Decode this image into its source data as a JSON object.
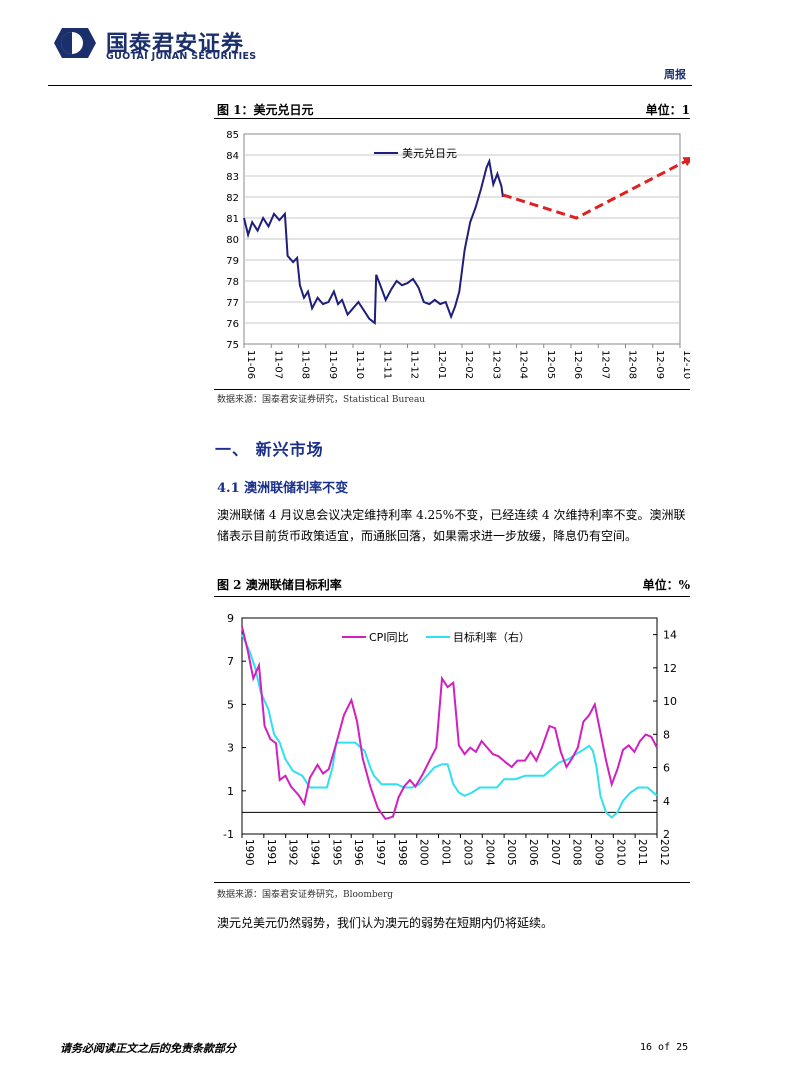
{
  "header": {
    "company_cn": "国泰君安证券",
    "company_en": "GUOTAI JUNAN SECURITIES",
    "doc_type": "周报"
  },
  "figure1": {
    "title": "图 1：美元兑日元",
    "unit": "单位：1",
    "source": "数据来源：国泰君安证券研究，Statistical Bureau"
  },
  "section": {
    "heading": "一、 新兴市场",
    "sub_heading": "4.1 澳洲联储利率不变",
    "paragraph": "澳洲联储 4 月议息会议决定维持利率 4.25%不变，已经连续 4 次维持利率不变。澳洲联储表示目前货币政策适宜，而通胀回落，如果需求进一步放缓，降息仍有空间。"
  },
  "figure2": {
    "title": "图 2 澳洲联储目标利率",
    "unit": "单位：%",
    "source": "数据来源：国泰君安证券研究，Bloomberg"
  },
  "closing_text": "澳元兑美元仍然弱势，我们认为澳元的弱势在短期内仍将延续。",
  "footer": {
    "disclaimer": "请务必阅读正文之后的免责条款部分",
    "page": "16 of 25"
  },
  "colors": {
    "brand": "#1a2f6b",
    "series_usd_jpy": "#1f1f7a",
    "forecast": "#e02020",
    "cpi": "#d020c0",
    "target_rate": "#30e0f0"
  },
  "chart_data": [
    {
      "type": "line",
      "title": "",
      "xlabel": "",
      "ylabel": "",
      "ylim": [
        75,
        85
      ],
      "yticks": [
        75,
        76,
        77,
        78,
        79,
        80,
        81,
        82,
        83,
        84,
        85
      ],
      "xticks": [
        "11-06",
        "11-07",
        "11-08",
        "11-09",
        "11-10",
        "11-11",
        "11-12",
        "12-01",
        "12-02",
        "12-03",
        "12-04",
        "12-05",
        "12-06",
        "12-07",
        "12-08",
        "12-09",
        "12-10"
      ],
      "grid": true,
      "legend_position": "top-center",
      "series": [
        {
          "name": "美元兑日元",
          "points": [
            [
              0.0,
              81.0
            ],
            [
              0.15,
              80.2
            ],
            [
              0.3,
              80.8
            ],
            [
              0.5,
              80.4
            ],
            [
              0.7,
              81.0
            ],
            [
              0.9,
              80.6
            ],
            [
              1.1,
              81.2
            ],
            [
              1.3,
              80.9
            ],
            [
              1.5,
              81.2
            ],
            [
              1.6,
              79.2
            ],
            [
              1.8,
              78.9
            ],
            [
              1.95,
              79.1
            ],
            [
              2.05,
              77.8
            ],
            [
              2.2,
              77.2
            ],
            [
              2.35,
              77.5
            ],
            [
              2.5,
              76.7
            ],
            [
              2.7,
              77.2
            ],
            [
              2.9,
              76.9
            ],
            [
              3.1,
              77.0
            ],
            [
              3.3,
              77.5
            ],
            [
              3.45,
              76.9
            ],
            [
              3.6,
              77.1
            ],
            [
              3.8,
              76.4
            ],
            [
              4.0,
              76.7
            ],
            [
              4.2,
              77.0
            ],
            [
              4.4,
              76.6
            ],
            [
              4.6,
              76.2
            ],
            [
              4.8,
              76.0
            ],
            [
              4.85,
              78.3
            ],
            [
              5.0,
              77.8
            ],
            [
              5.2,
              77.1
            ],
            [
              5.4,
              77.6
            ],
            [
              5.6,
              78.0
            ],
            [
              5.8,
              77.8
            ],
            [
              6.0,
              77.9
            ],
            [
              6.2,
              78.1
            ],
            [
              6.4,
              77.7
            ],
            [
              6.6,
              77.0
            ],
            [
              6.8,
              76.9
            ],
            [
              7.0,
              77.1
            ],
            [
              7.2,
              76.9
            ],
            [
              7.4,
              77.0
            ],
            [
              7.6,
              76.3
            ],
            [
              7.75,
              76.8
            ],
            [
              7.9,
              77.5
            ],
            [
              8.1,
              79.5
            ],
            [
              8.3,
              80.8
            ],
            [
              8.5,
              81.5
            ],
            [
              8.7,
              82.4
            ],
            [
              8.9,
              83.4
            ],
            [
              9.0,
              83.7
            ],
            [
              9.15,
              82.6
            ],
            [
              9.3,
              83.1
            ],
            [
              9.45,
              82.5
            ],
            [
              9.5,
              82.0
            ]
          ]
        },
        {
          "name": "",
          "style": "dashed-arrow",
          "points": [
            [
              9.5,
              82.1
            ],
            [
              12.2,
              81.0
            ],
            [
              16.5,
              83.9
            ]
          ]
        }
      ]
    },
    {
      "type": "line",
      "title": "",
      "xlabel": "",
      "ylabel": "",
      "ylim": [
        -1,
        9
      ],
      "yticks": [
        -1,
        1,
        3,
        5,
        7,
        9
      ],
      "y2lim": [
        2,
        15
      ],
      "y2ticks": [
        2,
        4,
        6,
        8,
        10,
        12,
        14
      ],
      "xticks": [
        "1990",
        "1991",
        "1992",
        "1994",
        "1995",
        "1996",
        "1997",
        "1998",
        "2000",
        "2001",
        "2003",
        "2004",
        "2005",
        "2006",
        "2007",
        "2008",
        "2009",
        "2010",
        "2011",
        "2012"
      ],
      "grid": false,
      "legend_position": "top-center",
      "series": [
        {
          "name": "CPI同比",
          "axis": "left",
          "points": [
            [
              1990.0,
              8.6
            ],
            [
              1990.3,
              7.5
            ],
            [
              1990.6,
              6.2
            ],
            [
              1990.9,
              6.8
            ],
            [
              1991.2,
              4.0
            ],
            [
              1991.5,
              3.4
            ],
            [
              1991.8,
              3.2
            ],
            [
              1992.0,
              1.5
            ],
            [
              1992.3,
              1.7
            ],
            [
              1992.6,
              1.2
            ],
            [
              1993.0,
              0.8
            ],
            [
              1993.3,
              0.4
            ],
            [
              1993.6,
              1.6
            ],
            [
              1994.0,
              2.2
            ],
            [
              1994.3,
              1.8
            ],
            [
              1994.6,
              2.0
            ],
            [
              1995.0,
              3.2
            ],
            [
              1995.4,
              4.5
            ],
            [
              1995.8,
              5.2
            ],
            [
              1996.1,
              4.2
            ],
            [
              1996.4,
              2.5
            ],
            [
              1996.8,
              1.2
            ],
            [
              1997.2,
              0.2
            ],
            [
              1997.6,
              -0.3
            ],
            [
              1998.0,
              -0.2
            ],
            [
              1998.3,
              0.7
            ],
            [
              1998.6,
              1.2
            ],
            [
              1998.9,
              1.5
            ],
            [
              1999.2,
              1.2
            ],
            [
              1999.6,
              1.8
            ],
            [
              2000.0,
              2.5
            ],
            [
              2000.3,
              3.0
            ],
            [
              2000.6,
              6.2
            ],
            [
              2000.9,
              5.8
            ],
            [
              2001.2,
              6.0
            ],
            [
              2001.5,
              3.1
            ],
            [
              2001.8,
              2.7
            ],
            [
              2002.1,
              3.0
            ],
            [
              2002.4,
              2.8
            ],
            [
              2002.7,
              3.3
            ],
            [
              2003.0,
              3.0
            ],
            [
              2003.3,
              2.7
            ],
            [
              2003.6,
              2.6
            ],
            [
              2004.0,
              2.3
            ],
            [
              2004.3,
              2.1
            ],
            [
              2004.6,
              2.4
            ],
            [
              2005.0,
              2.4
            ],
            [
              2005.3,
              2.8
            ],
            [
              2005.6,
              2.4
            ],
            [
              2005.9,
              3.0
            ],
            [
              2006.3,
              4.0
            ],
            [
              2006.6,
              3.9
            ],
            [
              2006.9,
              2.8
            ],
            [
              2007.2,
              2.1
            ],
            [
              2007.5,
              2.5
            ],
            [
              2007.8,
              3.0
            ],
            [
              2008.1,
              4.2
            ],
            [
              2008.4,
              4.5
            ],
            [
              2008.7,
              5.0
            ],
            [
              2009.0,
              3.7
            ],
            [
              2009.3,
              2.4
            ],
            [
              2009.6,
              1.3
            ],
            [
              2009.9,
              2.0
            ],
            [
              2010.2,
              2.9
            ],
            [
              2010.5,
              3.1
            ],
            [
              2010.8,
              2.8
            ],
            [
              2011.1,
              3.3
            ],
            [
              2011.4,
              3.6
            ],
            [
              2011.7,
              3.5
            ],
            [
              2012.0,
              3.0
            ]
          ]
        },
        {
          "name": "目标利率（右）",
          "axis": "right",
          "points": [
            [
              1990.0,
              14.0
            ],
            [
              1990.4,
              13.0
            ],
            [
              1990.7,
              12.0
            ],
            [
              1991.0,
              10.5
            ],
            [
              1991.4,
              9.5
            ],
            [
              1991.7,
              8.0
            ],
            [
              1992.0,
              7.5
            ],
            [
              1992.3,
              6.5
            ],
            [
              1992.7,
              5.8
            ],
            [
              1993.2,
              5.5
            ],
            [
              1993.6,
              4.8
            ],
            [
              1994.0,
              4.8
            ],
            [
              1994.5,
              4.8
            ],
            [
              1994.8,
              6.0
            ],
            [
              1995.0,
              7.5
            ],
            [
              1995.5,
              7.5
            ],
            [
              1996.0,
              7.5
            ],
            [
              1996.5,
              7.0
            ],
            [
              1996.8,
              6.0
            ],
            [
              1997.0,
              5.5
            ],
            [
              1997.4,
              5.0
            ],
            [
              1997.8,
              5.0
            ],
            [
              1998.2,
              5.0
            ],
            [
              1998.6,
              4.8
            ],
            [
              1999.0,
              4.8
            ],
            [
              1999.4,
              5.0
            ],
            [
              1999.8,
              5.5
            ],
            [
              2000.2,
              6.0
            ],
            [
              2000.6,
              6.2
            ],
            [
              2000.9,
              6.2
            ],
            [
              2001.2,
              5.0
            ],
            [
              2001.5,
              4.5
            ],
            [
              2001.8,
              4.3
            ],
            [
              2002.2,
              4.5
            ],
            [
              2002.6,
              4.8
            ],
            [
              2003.0,
              4.8
            ],
            [
              2003.5,
              4.8
            ],
            [
              2003.9,
              5.3
            ],
            [
              2004.5,
              5.3
            ],
            [
              2005.0,
              5.5
            ],
            [
              2005.5,
              5.5
            ],
            [
              2006.0,
              5.5
            ],
            [
              2006.3,
              5.8
            ],
            [
              2006.8,
              6.3
            ],
            [
              2007.3,
              6.5
            ],
            [
              2007.7,
              6.8
            ],
            [
              2008.0,
              7.0
            ],
            [
              2008.4,
              7.3
            ],
            [
              2008.6,
              7.0
            ],
            [
              2008.8,
              6.0
            ],
            [
              2009.0,
              4.3
            ],
            [
              2009.3,
              3.3
            ],
            [
              2009.6,
              3.0
            ],
            [
              2009.9,
              3.3
            ],
            [
              2010.2,
              4.0
            ],
            [
              2010.6,
              4.5
            ],
            [
              2011.0,
              4.8
            ],
            [
              2011.5,
              4.8
            ],
            [
              2011.8,
              4.5
            ],
            [
              2012.0,
              4.3
            ]
          ]
        }
      ]
    }
  ]
}
